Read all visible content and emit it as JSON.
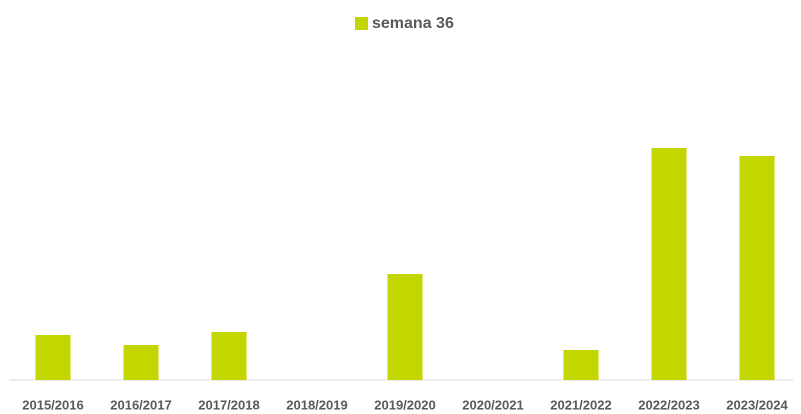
{
  "chart_data": {
    "type": "bar",
    "categories": [
      "2015/2016",
      "2016/2017",
      "2017/2018",
      "2018/2019",
      "2019/2020",
      "2020/2021",
      "2021/2022",
      "2022/2023",
      "2023/2024"
    ],
    "series": [
      {
        "name": "semana 36",
        "color": "#c3d600",
        "values": [
          45,
          35,
          48,
          0,
          106,
          0,
          30,
          232,
          224
        ]
      }
    ],
    "ylim": [
      0,
      280
    ],
    "legend": "top"
  }
}
